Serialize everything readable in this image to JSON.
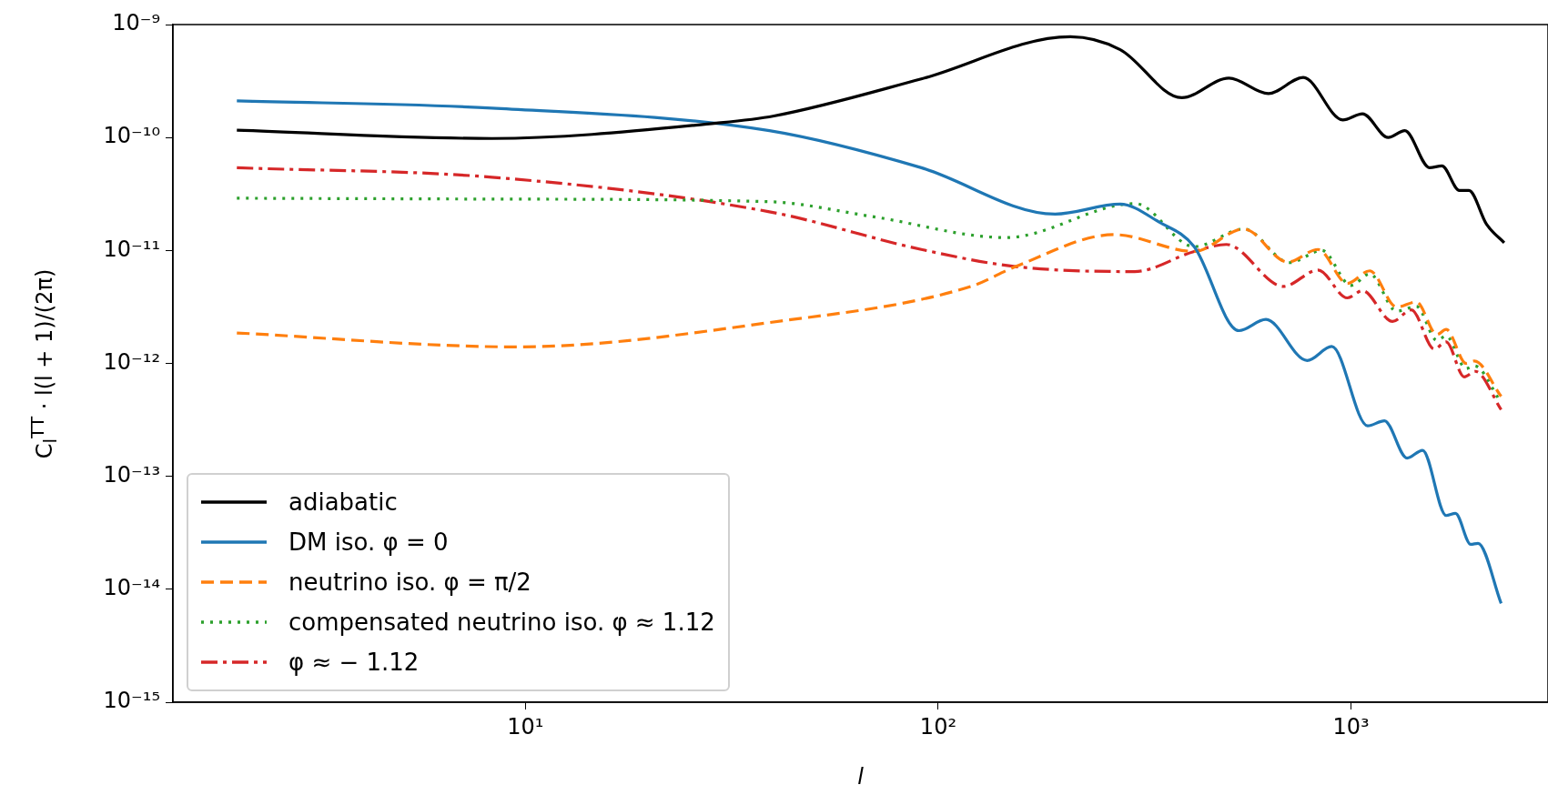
{
  "chart_data": {
    "type": "line",
    "xlabel": "l",
    "ylabel": "C$_{l}$$^{TT}$ · l(l + 1)/(2π)",
    "log": "xy",
    "grid": false,
    "legend": "bottom left",
    "xlim": [
      1.4,
      3000
    ],
    "ylim": [
      1e-15,
      1e-09
    ],
    "xticks": [
      {
        "value": 10,
        "label": "10¹"
      },
      {
        "value": 100,
        "label": "10²"
      },
      {
        "value": 1000,
        "label": "10³"
      }
    ],
    "yticks": [
      {
        "value": 1e-15,
        "label": "10⁻¹⁵"
      },
      {
        "value": 1e-14,
        "label": "10⁻¹⁴"
      },
      {
        "value": 1e-13,
        "label": "10⁻¹³"
      },
      {
        "value": 1e-12,
        "label": "10⁻¹²"
      },
      {
        "value": 1e-11,
        "label": "10⁻¹¹"
      },
      {
        "value": 1e-10,
        "label": "10⁻¹⁰"
      },
      {
        "value": 1e-09,
        "label": "10⁻⁹"
      }
    ],
    "series": [
      {
        "name": "adiabatic",
        "color": "#000000",
        "line_style": "solid",
        "x": [
          2,
          8.3,
          29,
          40,
          91,
          209,
          276,
          389,
          506,
          631,
          766,
          955,
          1066,
          1230,
          1350,
          1550,
          1660,
          1830,
          1930,
          2130,
          2350
        ],
        "values": [
          1.16e-10,
          9.8e-11,
          1.34e-10,
          1.55e-10,
          3.3e-10,
          7.8e-10,
          6e-10,
          2.25e-10,
          3.36e-10,
          2.45e-10,
          3.4e-10,
          1.43e-10,
          1.62e-10,
          1e-10,
          1.15e-10,
          5.4e-11,
          5.6e-11,
          3.4e-11,
          3.4e-11,
          1.7e-11,
          1.17e-11
        ]
      },
      {
        "name": "DM iso. φ = 0",
        "color": "#1f77b4",
        "line_style": "solid",
        "x": [
          2,
          8.3,
          39,
          91,
          192,
          276,
          343,
          417,
          535,
          622,
          783,
          898,
          1097,
          1205,
          1367,
          1490,
          1700,
          1790,
          1950,
          2030,
          2310
        ],
        "values": [
          2.11e-10,
          1.82e-10,
          1.15e-10,
          5.4e-11,
          2.1e-11,
          2.57e-11,
          1.78e-11,
          1.08e-11,
          1.95e-12,
          2.45e-12,
          1.06e-12,
          1.41e-12,
          2.8e-13,
          3.1e-13,
          1.45e-13,
          1.7e-13,
          4.5e-14,
          4.7e-14,
          2.5e-14,
          2.55e-14,
          7.5e-15
        ]
      },
      {
        "name": "neutrino iso. φ = π/2",
        "color": "#ff7f0e",
        "line_style": "dashed",
        "x": [
          2,
          9.5,
          39,
          120,
          154,
          267,
          417,
          550,
          703,
          832,
          980,
          1110,
          1290,
          1440,
          1615,
          1700,
          1900,
          1990,
          2310
        ],
        "values": [
          1.86e-12,
          1.4e-12,
          2.3e-12,
          4.8e-12,
          7.2e-12,
          1.38e-11,
          9.8e-12,
          1.55e-11,
          7.9e-12,
          1.02e-11,
          5.1e-12,
          6.6e-12,
          3.15e-12,
          3.5e-12,
          1.8e-12,
          2e-12,
          1e-12,
          1.05e-12,
          5.1e-13
        ]
      },
      {
        "name": "compensated neutrino iso. φ ≈ 1.12",
        "color": "#2ca02c",
        "line_style": "dotted",
        "x": [
          2,
          8.3,
          39,
          69,
          146,
          300,
          417,
          550,
          710,
          850,
          1000,
          1110,
          1290,
          1440,
          1615,
          1700,
          1900,
          1990,
          2310
        ],
        "values": [
          2.9e-11,
          2.85e-11,
          2.7e-11,
          2e-11,
          1.3e-11,
          2.6e-11,
          1.08e-11,
          1.55e-11,
          7.8e-12,
          1e-11,
          4.9e-12,
          6.2e-12,
          2.9e-12,
          3.2e-12,
          1.6e-12,
          1.75e-12,
          9e-13,
          9.5e-13,
          4.5e-13
        ]
      },
      {
        "name": "φ ≈ − 1.12",
        "color": "#d62728",
        "line_style": "dashdot",
        "x": [
          2,
          8.3,
          39,
          91,
          154,
          299,
          417,
          499,
          686,
          832,
          980,
          1066,
          1260,
          1400,
          1590,
          1700,
          1880,
          2000,
          2310
        ],
        "values": [
          5.4e-11,
          4.45e-11,
          2.2e-11,
          1.02e-11,
          7.2e-12,
          6.5e-12,
          9.8e-12,
          1.13e-11,
          4.8e-12,
          6.7e-12,
          3.8e-12,
          4.4e-12,
          2.35e-12,
          2.98e-12,
          1.34e-12,
          1.55e-12,
          7.6e-13,
          8.5e-13,
          3.9e-13
        ]
      }
    ]
  }
}
